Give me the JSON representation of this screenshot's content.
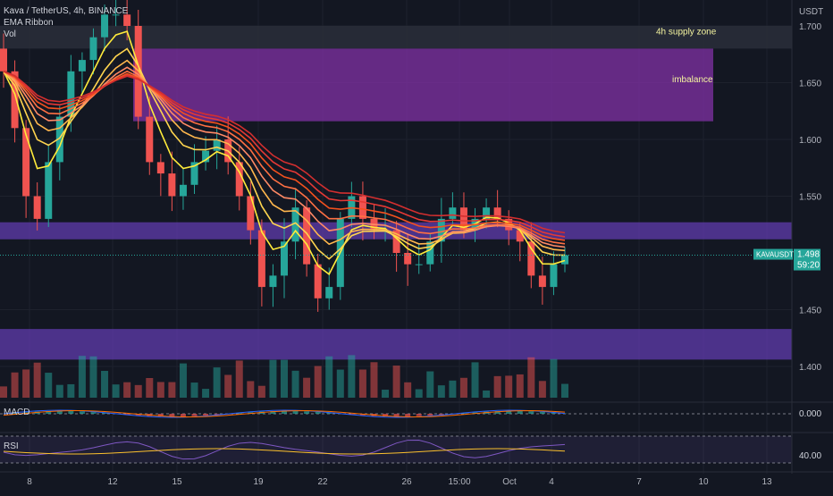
{
  "header": {
    "symbol_line": "Kava / TetherUS, 4h, BINANCE",
    "indicator_1": "EMA Ribbon",
    "indicator_2": "Vol"
  },
  "price_axis": {
    "currency": "USDT",
    "ticks": [
      "1.700",
      "1.650",
      "1.600",
      "1.550",
      "1.450",
      "1.400"
    ],
    "tick_values": [
      1.7,
      1.65,
      1.6,
      1.55,
      1.45,
      1.4
    ]
  },
  "last_price": {
    "symbol": "KAVAUSDT",
    "price": "1.498",
    "countdown": "59:20",
    "value": 1.498
  },
  "zones": [
    {
      "label": "4h supply zone",
      "top": 1.7,
      "bottom": 1.68,
      "color": "#2a2e39"
    },
    {
      "label": "imbalance",
      "top": 1.68,
      "bottom": 1.616,
      "color": "#7b2f9e"
    },
    {
      "label": "",
      "top": 1.527,
      "bottom": 1.512,
      "color": "#5b3aa5"
    },
    {
      "label": "",
      "top": 1.433,
      "bottom": 1.406,
      "color": "#5b3aa5"
    }
  ],
  "macd": {
    "label": "MACD",
    "axis_value": "0.000"
  },
  "rsi": {
    "label": "RSI",
    "axis_value": "40.00"
  },
  "time_axis": [
    "8",
    "12",
    "15",
    "19",
    "22",
    "26",
    "15:00",
    "Oct",
    "4",
    "7",
    "10",
    "13"
  ],
  "colors": {
    "up": "#26a69a",
    "down": "#ef5350",
    "ribbon_top": "#ffeb3b",
    "ribbon_bottom": "#f44336",
    "zone_purple": "#5b3aa5",
    "imbalance": "#7b2f9e"
  },
  "chart_data": {
    "type": "candlestick",
    "title": "Kava / TetherUS, 4h, BINANCE",
    "ylim": [
      1.38,
      1.71
    ],
    "y_unit": "USDT",
    "close_series": [
      1.66,
      1.61,
      1.55,
      1.53,
      1.58,
      1.62,
      1.66,
      1.67,
      1.69,
      1.71,
      1.71,
      1.7,
      1.62,
      1.58,
      1.57,
      1.55,
      1.56,
      1.58,
      1.59,
      1.6,
      1.58,
      1.55,
      1.52,
      1.47,
      1.48,
      1.51,
      1.54,
      1.49,
      1.46,
      1.47,
      1.53,
      1.55,
      1.53,
      1.52,
      1.52,
      1.5,
      1.49,
      1.49,
      1.51,
      1.53,
      1.54,
      1.52,
      1.53,
      1.54,
      1.53,
      1.52,
      1.51,
      1.48,
      1.47,
      1.49,
      1.498
    ],
    "macd_value": 0.0,
    "rsi_value": 40.0
  }
}
